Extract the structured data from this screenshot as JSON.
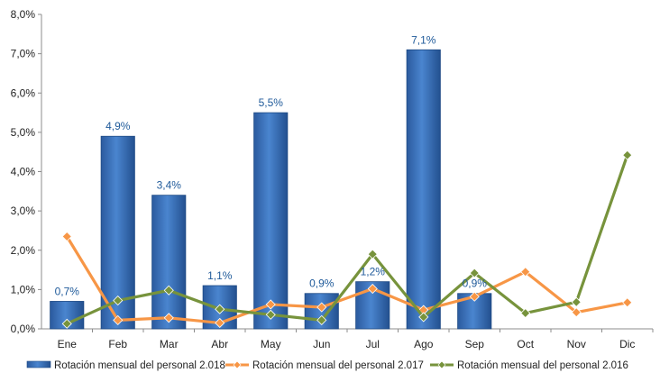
{
  "chart_data": {
    "type": "bar",
    "categories": [
      "Ene",
      "Feb",
      "Mar",
      "Abr",
      "May",
      "Jun",
      "Jul",
      "Ago",
      "Sep",
      "Oct",
      "Nov",
      "Dic"
    ],
    "ylim": [
      0,
      8
    ],
    "yticks": [
      "0,0%",
      "1,0%",
      "2,0%",
      "3,0%",
      "4,0%",
      "5,0%",
      "6,0%",
      "7,0%",
      "8,0%"
    ],
    "grid": false,
    "legend_position": "bottom",
    "series": [
      {
        "name": "Rotación mensual del personal 2.018",
        "type": "bar",
        "color": "#3a70b8",
        "values": [
          0.7,
          4.9,
          3.4,
          1.1,
          5.5,
          0.9,
          1.2,
          7.1,
          0.9,
          null,
          null,
          null
        ],
        "labels": [
          "0,7%",
          "4,9%",
          "3,4%",
          "1,1%",
          "5,5%",
          "0,9%",
          "1,2%",
          "7,1%",
          "0,9%",
          null,
          null,
          null
        ]
      },
      {
        "name": "Rotación mensual del personal 2.017",
        "type": "line",
        "color": "#f79646",
        "values": [
          2.35,
          0.22,
          0.28,
          0.15,
          0.62,
          0.55,
          1.02,
          0.48,
          0.82,
          1.45,
          0.42,
          0.67
        ]
      },
      {
        "name": "Rotación mensual del personal 2.016",
        "type": "line",
        "color": "#77933c",
        "values": [
          0.13,
          0.72,
          0.98,
          0.5,
          0.36,
          0.22,
          1.9,
          0.3,
          1.42,
          0.4,
          0.68,
          4.42
        ]
      }
    ]
  }
}
